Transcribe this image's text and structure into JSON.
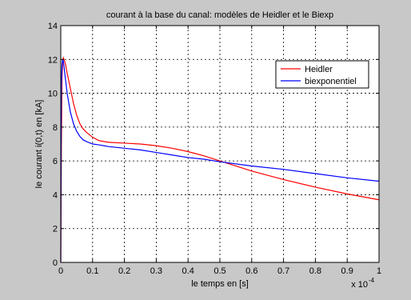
{
  "chart_data": {
    "type": "line",
    "title": "courant à la base du canal: modèles de Heidler et le Biexp",
    "xlabel": "le temps en [s]",
    "ylabel": "le courant i(0,t) en [kA]",
    "x_multiplier": "x 10",
    "x_multiplier_exp": "-4",
    "xlim": [
      0,
      1
    ],
    "ylim": [
      0,
      14
    ],
    "xticks": [
      0,
      0.1,
      0.2,
      0.3,
      0.4,
      0.5,
      0.6,
      0.7,
      0.8,
      0.9,
      1
    ],
    "xtick_labels": [
      "0",
      "0.1",
      "0.2",
      "0.3",
      "0.4",
      "0.5",
      "0.6",
      "0.7",
      "0.8",
      "0.9",
      "1"
    ],
    "yticks": [
      0,
      2,
      4,
      6,
      8,
      10,
      12,
      14
    ],
    "ytick_labels": [
      "0",
      "2",
      "4",
      "6",
      "8",
      "10",
      "12",
      "14"
    ],
    "grid": true,
    "legend_position": "top-right",
    "series": [
      {
        "name": "Heidler",
        "color": "#ff0000",
        "x": [
          0,
          0.002,
          0.004,
          0.006,
          0.008,
          0.01,
          0.012,
          0.015,
          0.02,
          0.03,
          0.04,
          0.05,
          0.06,
          0.07,
          0.08,
          0.1,
          0.12,
          0.15,
          0.2,
          0.25,
          0.3,
          0.35,
          0.4,
          0.45,
          0.5,
          0.55,
          0.6,
          0.7,
          0.8,
          0.9,
          1.0
        ],
        "y": [
          0,
          7.0,
          11.0,
          11.9,
          12.1,
          12.0,
          11.9,
          11.7,
          11.2,
          10.3,
          9.4,
          8.7,
          8.2,
          7.9,
          7.7,
          7.4,
          7.2,
          7.1,
          7.05,
          7.0,
          6.9,
          6.75,
          6.55,
          6.3,
          6.0,
          5.7,
          5.4,
          4.9,
          4.45,
          4.05,
          3.7
        ]
      },
      {
        "name": "biexponentiel",
        "color": "#0000ff",
        "x": [
          0,
          0.001,
          0.002,
          0.004,
          0.006,
          0.008,
          0.01,
          0.015,
          0.02,
          0.03,
          0.04,
          0.05,
          0.06,
          0.07,
          0.08,
          0.1,
          0.12,
          0.15,
          0.2,
          0.25,
          0.3,
          0.35,
          0.4,
          0.45,
          0.5,
          0.6,
          0.7,
          0.8,
          0.9,
          1.0
        ],
        "y": [
          0,
          7.5,
          10.5,
          11.7,
          12.0,
          11.9,
          11.6,
          10.8,
          10.0,
          8.9,
          8.2,
          7.75,
          7.45,
          7.25,
          7.15,
          7.0,
          6.95,
          6.85,
          6.75,
          6.65,
          6.5,
          6.35,
          6.2,
          6.1,
          5.95,
          5.7,
          5.5,
          5.25,
          5.0,
          4.8
        ]
      }
    ]
  }
}
